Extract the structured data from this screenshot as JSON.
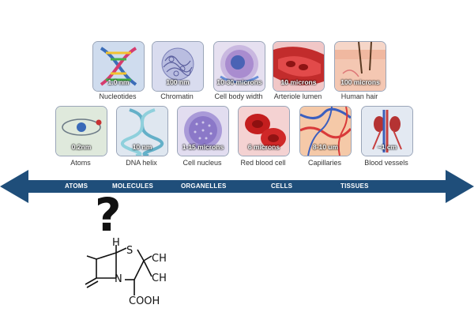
{
  "row1": [
    {
      "id": "nucleotides",
      "size": "1.0 nm",
      "label": "Nucleotides"
    },
    {
      "id": "chromatin",
      "size": "100 nm",
      "label": "Chromatin"
    },
    {
      "id": "cell-body-width",
      "size": "10-30 microns",
      "label": "Cell body width"
    },
    {
      "id": "arteriole-lumen",
      "size": "10 microns",
      "label": "Arteriole lumen"
    },
    {
      "id": "human-hair",
      "size": "100 microns",
      "label": "Human hair"
    }
  ],
  "row2": [
    {
      "id": "atoms",
      "size": "0.2nm",
      "label": "Atoms"
    },
    {
      "id": "dna-helix",
      "size": "10 nm",
      "label": "DNA helix"
    },
    {
      "id": "cell-nucleus",
      "size": "1-15 microns",
      "label": "Cell nucleus"
    },
    {
      "id": "red-blood-cell",
      "size": "6 microns",
      "label": "Red blood cell"
    },
    {
      "id": "capillaries",
      "size": "8-10 um",
      "label": "Capillaries"
    },
    {
      "id": "blood-vessels",
      "size": "~1 cm",
      "label": "Blood vessels"
    }
  ],
  "scale": {
    "atoms": "ATOMS",
    "molecules": "MOLECULES",
    "organelles": "ORGANELLES",
    "cells": "CELLS",
    "tissues": "TISSUES"
  },
  "question_mark": "?",
  "molecule": {
    "h": "H",
    "s": "S",
    "ch_top": "CH",
    "ch_bottom": "CH",
    "n": "N",
    "cooh": "COOH"
  },
  "colors": {
    "arrow": "#1f4e7a",
    "tile_border": "#9aa5b8",
    "tile_bg": "#dde6f2"
  }
}
